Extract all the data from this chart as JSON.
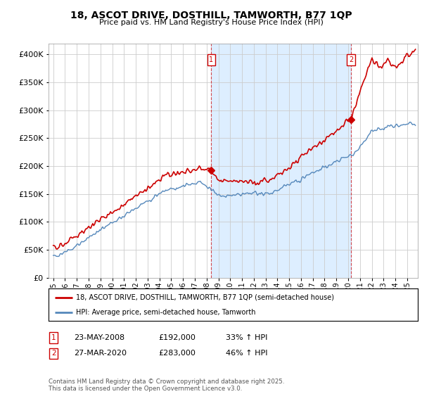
{
  "title_line1": "18, ASCOT DRIVE, DOSTHILL, TAMWORTH, B77 1QP",
  "title_line2": "Price paid vs. HM Land Registry's House Price Index (HPI)",
  "legend_label1": "18, ASCOT DRIVE, DOSTHILL, TAMWORTH, B77 1QP (semi-detached house)",
  "legend_label2": "HPI: Average price, semi-detached house, Tamworth",
  "annotation1": {
    "num": "1",
    "date": "23-MAY-2008",
    "price": "£192,000",
    "pct": "33% ↑ HPI"
  },
  "annotation2": {
    "num": "2",
    "date": "27-MAR-2020",
    "price": "£283,000",
    "pct": "46% ↑ HPI"
  },
  "footnote": "Contains HM Land Registry data © Crown copyright and database right 2025.\nThis data is licensed under the Open Government Licence v3.0.",
  "color_red": "#cc0000",
  "color_blue": "#5588bb",
  "color_grid": "#cccccc",
  "color_bg": "#ffffff",
  "color_shade": "#ddeeff",
  "ylim": [
    0,
    420000
  ],
  "yticks": [
    0,
    50000,
    100000,
    150000,
    200000,
    250000,
    300000,
    350000,
    400000
  ],
  "xlabel_years": [
    "1995",
    "1996",
    "1997",
    "1998",
    "1999",
    "2000",
    "2001",
    "2002",
    "2003",
    "2004",
    "2005",
    "2006",
    "2007",
    "2008",
    "2009",
    "2010",
    "2011",
    "2012",
    "2013",
    "2014",
    "2015",
    "2016",
    "2017",
    "2018",
    "2019",
    "2020",
    "2021",
    "2022",
    "2023",
    "2024",
    "2025"
  ],
  "marker1_x": 2008.39,
  "marker1_y": 192000,
  "marker2_x": 2020.24,
  "marker2_y": 283000,
  "xlim_left": 1994.6,
  "xlim_right": 2025.9
}
